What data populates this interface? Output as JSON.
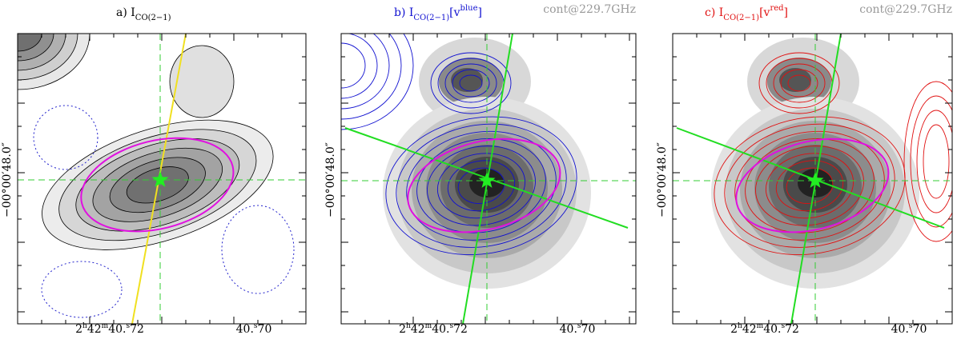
{
  "panels": [
    {
      "label": "a) I",
      "sub": "CO(2−1)",
      "pre": "",
      "sup": "",
      "post": "",
      "note": "",
      "color": "#000000"
    },
    {
      "label": "b) I",
      "sub": "CO(2−1)",
      "pre": "[v",
      "sup": "blue",
      "post": "]",
      "note": "cont@229.7GHz",
      "color": "#1010d0"
    },
    {
      "label": "c) I",
      "sub": "CO(2−1)",
      "pre": "[v",
      "sup": "red",
      "post": "]",
      "note": "cont@229.7GHz",
      "color": "#e01010"
    }
  ],
  "ylabel": "−00°00′48.0″",
  "xticks": [
    [
      {
        "text": "2",
        "sup": false
      },
      {
        "text": "h",
        "sup": true
      },
      {
        "text": "42",
        "sup": false
      },
      {
        "text": "m",
        "sup": true
      },
      {
        "text": "40.",
        "sup": false
      },
      {
        "text": "s",
        "sup": true
      },
      {
        "text": "72",
        "sup": false
      }
    ],
    [
      {
        "text": "40.",
        "sup": false
      },
      {
        "text": "s",
        "sup": true
      },
      {
        "text": "70",
        "sup": false
      }
    ]
  ]
}
